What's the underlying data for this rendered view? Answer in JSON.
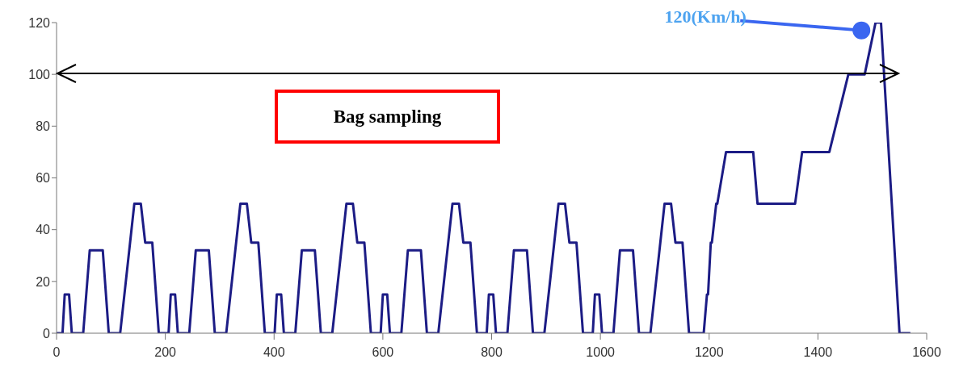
{
  "chart_data": {
    "type": "line",
    "x": [
      0,
      11,
      15,
      23,
      28,
      49,
      61,
      85,
      96,
      117,
      143,
      155,
      163,
      176,
      188,
      195,
      206,
      210,
      218,
      223,
      244,
      256,
      280,
      291,
      312,
      338,
      350,
      358,
      371,
      383,
      390,
      401,
      405,
      413,
      418,
      439,
      451,
      475,
      486,
      507,
      533,
      545,
      553,
      566,
      578,
      585,
      596,
      600,
      608,
      613,
      634,
      646,
      670,
      681,
      702,
      728,
      740,
      748,
      761,
      773,
      780,
      791,
      795,
      803,
      808,
      829,
      841,
      865,
      876,
      897,
      923,
      935,
      943,
      956,
      968,
      975,
      986,
      990,
      998,
      1003,
      1024,
      1036,
      1060,
      1071,
      1092,
      1118,
      1130,
      1138,
      1151,
      1163,
      1170,
      1190,
      1196,
      1198,
      1203,
      1205,
      1213,
      1215,
      1231,
      1281,
      1289,
      1358,
      1371,
      1421,
      1456,
      1486,
      1506,
      1516,
      1550,
      1570
    ],
    "series": [
      {
        "color": "#1c1c85",
        "values": [
          0,
          0,
          15,
          15,
          0,
          0,
          32,
          32,
          0,
          0,
          50,
          50,
          35,
          35,
          0,
          0,
          0,
          15,
          15,
          0,
          0,
          32,
          32,
          0,
          0,
          50,
          50,
          35,
          35,
          0,
          0,
          0,
          15,
          15,
          0,
          0,
          32,
          32,
          0,
          0,
          50,
          50,
          35,
          35,
          0,
          0,
          0,
          15,
          15,
          0,
          0,
          32,
          32,
          0,
          0,
          50,
          50,
          35,
          35,
          0,
          0,
          0,
          15,
          15,
          0,
          0,
          32,
          32,
          0,
          0,
          50,
          50,
          35,
          35,
          0,
          0,
          0,
          15,
          15,
          0,
          0,
          32,
          32,
          0,
          0,
          50,
          50,
          35,
          35,
          0,
          0,
          0,
          15,
          15,
          35,
          35,
          50,
          50,
          70,
          70,
          50,
          50,
          70,
          70,
          100,
          100,
          120,
          120,
          0,
          0
        ]
      }
    ],
    "xlim": [
      0,
      1600
    ],
    "xticks": [
      0,
      200,
      400,
      600,
      800,
      1000,
      1200,
      1400,
      1600
    ],
    "ylim": [
      0,
      120
    ],
    "yticks": [
      0,
      20,
      40,
      60,
      80,
      100,
      120
    ],
    "marker": "none",
    "line_style": "solid",
    "annotations": [
      {
        "text": "120(Km/h)",
        "x": 1480,
        "y": 117
      },
      "Bag sampling"
    ]
  }
}
